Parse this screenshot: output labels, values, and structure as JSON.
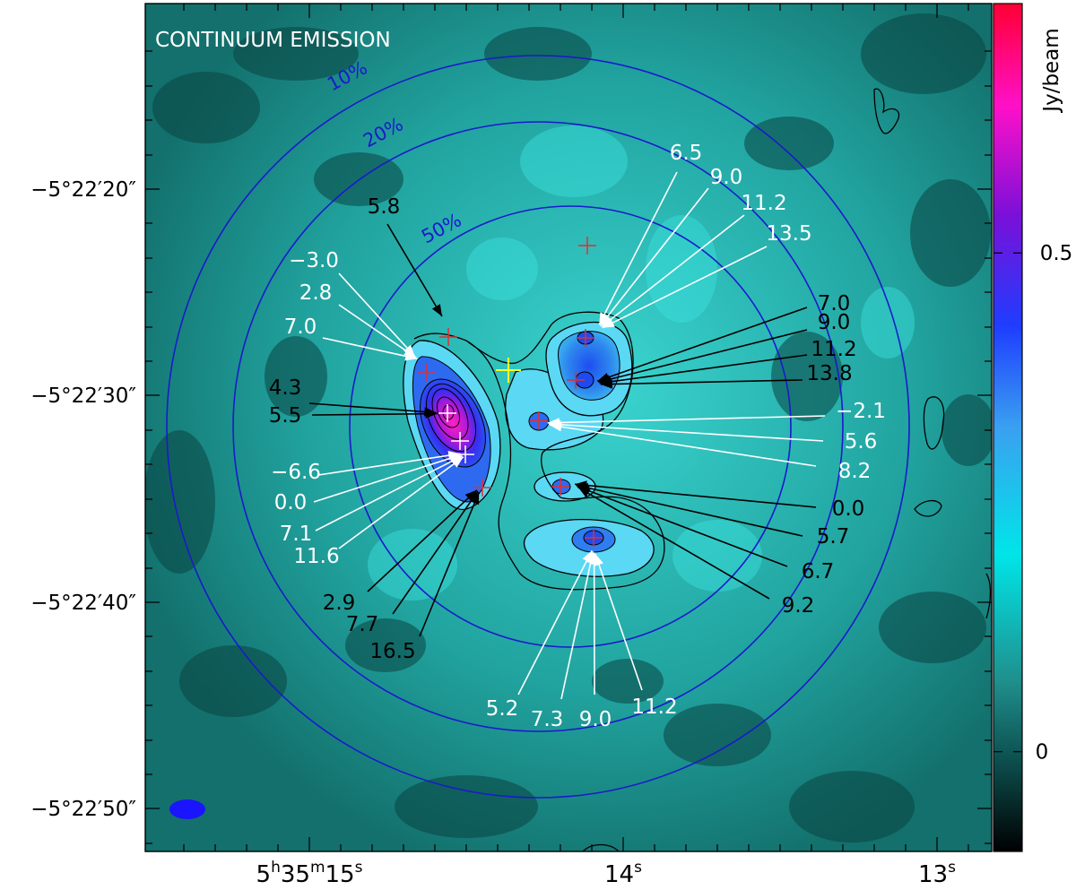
{
  "image": {
    "title": "CONTINUUM EMISSION",
    "colormap": [
      "#000000",
      "#0b4a49",
      "#1f8f8c",
      "#00e5e8",
      "#3aa0f0",
      "#1f3dff",
      "#7a10d8",
      "#ff10c8",
      "#ff0033"
    ],
    "background_color": "#1d8a86",
    "beam_color": "#1a14ff",
    "contour_color": "#000000",
    "circle_color": "#1a1acc",
    "marker_red": "#e03030",
    "marker_white": "#ffffff",
    "marker_yellow": "#ffff22"
  },
  "colorbar": {
    "label": "Jy/beam",
    "ticks": [
      {
        "label": "0.5",
        "value": 0.5
      },
      {
        "label": "0",
        "value": 0
      }
    ],
    "range": [
      -0.1,
      0.75
    ]
  },
  "axes": {
    "y_ticks": [
      "−5°22′20″",
      "−5°22′30″",
      "−5°22′40″",
      "−5°22′50″"
    ],
    "x_ticks": [
      {
        "h": "5",
        "m": "35",
        "s": "15"
      },
      {
        "s": "14"
      },
      {
        "s": "13"
      }
    ]
  },
  "primary_beam_circles": [
    {
      "label": "10%"
    },
    {
      "label": "20%"
    },
    {
      "label": "50%"
    }
  ],
  "arrow_groups": [
    {
      "color": "black",
      "labels": [
        "5.8"
      ]
    },
    {
      "color": "white",
      "labels": [
        "−3.0",
        "2.8",
        "7.0"
      ]
    },
    {
      "color": "black",
      "labels": [
        "4.3",
        "5.5"
      ]
    },
    {
      "color": "white",
      "labels": [
        "−6.6",
        "0.0",
        "7.1",
        "11.6"
      ]
    },
    {
      "color": "black",
      "labels": [
        "2.9",
        "7.7",
        "16.5"
      ]
    },
    {
      "color": "white",
      "labels": [
        "6.5",
        "9.0",
        "11.2",
        "13.5"
      ]
    },
    {
      "color": "black",
      "labels": [
        "7.0",
        "9.0",
        "11.2",
        "13.8"
      ]
    },
    {
      "color": "white",
      "labels": [
        "−2.1",
        "5.6",
        "8.2"
      ]
    },
    {
      "color": "black",
      "labels": [
        "0.0",
        "5.7",
        "6.7",
        "9.2"
      ]
    },
    {
      "color": "white",
      "labels": [
        "5.2",
        "7.3",
        "9.0",
        "11.2"
      ]
    }
  ]
}
